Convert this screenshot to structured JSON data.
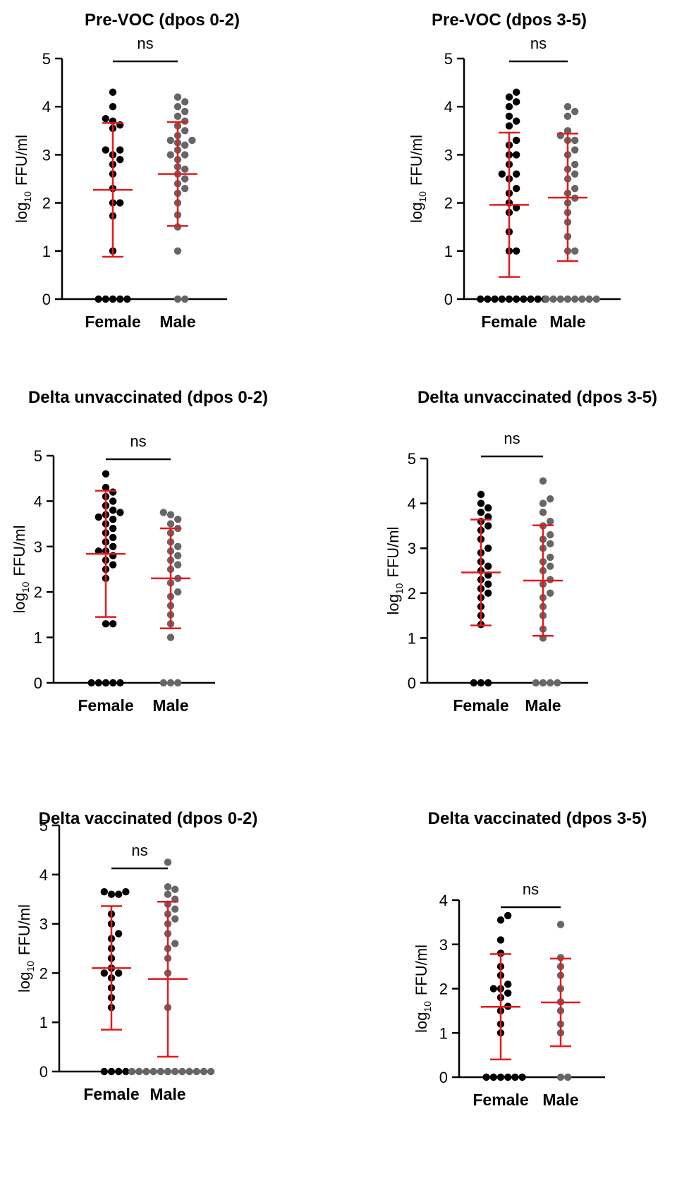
{
  "colors": {
    "female_points": "#000000",
    "male_points": "#666666",
    "error_bars": "#e41a1c",
    "axes": "#000000"
  },
  "chart_data": [
    {
      "type": "scatter",
      "title": "Pre-VOC (dpos 0-2)",
      "ylabel": "log10 FFU/ml",
      "ylabel_base": "log",
      "ylabel_sub": "10",
      "ylabel_rest": "FFU/ml",
      "categories": [
        "Female",
        "Male"
      ],
      "ylim": [
        0,
        5
      ],
      "yticks": [
        0,
        1,
        2,
        3,
        4,
        5
      ],
      "significance": "ns",
      "series": [
        {
          "name": "Female",
          "mean": 2.27,
          "sd_low": 0.88,
          "sd_high": 3.66,
          "values": [
            0,
            0,
            0,
            0,
            0,
            1.0,
            1.73,
            2.0,
            2.0,
            2.3,
            2.6,
            2.8,
            2.9,
            3.0,
            3.1,
            3.1,
            3.55,
            3.62,
            3.7,
            3.75,
            4.0,
            4.3
          ]
        },
        {
          "name": "Male",
          "mean": 2.6,
          "sd_low": 1.52,
          "sd_high": 3.68,
          "values": [
            0,
            0,
            1.0,
            1.5,
            1.75,
            2.0,
            2.2,
            2.3,
            2.4,
            2.5,
            2.6,
            2.7,
            2.75,
            2.9,
            3.0,
            3.0,
            3.1,
            3.2,
            3.25,
            3.3,
            3.3,
            3.4,
            3.5,
            3.6,
            3.7,
            3.8,
            3.9,
            4.0,
            4.1,
            4.2
          ]
        }
      ]
    },
    {
      "type": "scatter",
      "title": "Pre-VOC (dpos 3-5)",
      "ylabel": "log10 FFU/ml",
      "ylabel_base": "log",
      "ylabel_sub": "10",
      "ylabel_rest": "FFU/ml",
      "categories": [
        "Female",
        "Male"
      ],
      "ylim": [
        0,
        5
      ],
      "yticks": [
        0,
        1,
        2,
        3,
        4,
        5
      ],
      "significance": "ns",
      "series": [
        {
          "name": "Female",
          "mean": 1.96,
          "sd_low": 0.46,
          "sd_high": 3.46,
          "values": [
            0,
            0,
            0,
            0,
            0,
            0,
            0,
            0,
            0,
            0,
            1.0,
            1.0,
            1.4,
            1.8,
            1.9,
            2.0,
            2.2,
            2.3,
            2.5,
            2.6,
            2.6,
            2.8,
            3.0,
            3.0,
            3.2,
            3.3,
            3.6,
            3.7,
            3.8,
            4.0,
            4.1,
            4.2,
            4.3
          ]
        },
        {
          "name": "Male",
          "mean": 2.11,
          "sd_low": 0.79,
          "sd_high": 3.44,
          "values": [
            0,
            0,
            0,
            0,
            0,
            0,
            0,
            0,
            1.0,
            1.0,
            1.3,
            1.6,
            1.8,
            2.0,
            2.1,
            2.2,
            2.3,
            2.5,
            2.6,
            2.7,
            2.8,
            3.0,
            3.1,
            3.3,
            3.3,
            3.4,
            3.5,
            3.8,
            3.9,
            4.0
          ]
        }
      ]
    },
    {
      "type": "scatter",
      "title": "Delta unvaccinated (dpos 0-2)",
      "ylabel": "log10 FFU/ml",
      "ylabel_base": "log",
      "ylabel_sub": "10",
      "ylabel_rest": "FFU/ml",
      "categories": [
        "Female",
        "Male"
      ],
      "ylim": [
        0,
        5
      ],
      "yticks": [
        0,
        1,
        2,
        3,
        4,
        5
      ],
      "significance": "ns",
      "series": [
        {
          "name": "Female",
          "mean": 2.84,
          "sd_low": 1.45,
          "sd_high": 4.23,
          "values": [
            0,
            0,
            0,
            0,
            0,
            1.3,
            1.3,
            2.3,
            2.5,
            2.6,
            2.7,
            2.8,
            2.9,
            2.9,
            3.0,
            3.1,
            3.2,
            3.3,
            3.4,
            3.5,
            3.6,
            3.65,
            3.7,
            3.75,
            3.8,
            3.9,
            4.0,
            4.1,
            4.2,
            4.3,
            4.6
          ]
        },
        {
          "name": "Male",
          "mean": 2.3,
          "sd_low": 1.2,
          "sd_high": 3.4,
          "values": [
            0,
            0,
            0,
            1.0,
            1.3,
            1.5,
            1.7,
            1.9,
            2.0,
            2.2,
            2.3,
            2.5,
            2.6,
            2.7,
            2.8,
            2.9,
            3.0,
            3.1,
            3.3,
            3.4,
            3.5,
            3.6,
            3.7,
            3.75
          ]
        }
      ]
    },
    {
      "type": "scatter",
      "title": "Delta unvaccinated (dpos 3-5)",
      "ylabel": "log10 FFU/ml",
      "ylabel_base": "log",
      "ylabel_sub": "10",
      "ylabel_rest": "FFU/ml",
      "categories": [
        "Female",
        "Male"
      ],
      "ylim": [
        0,
        5
      ],
      "yticks": [
        0,
        1,
        2,
        3,
        4,
        5
      ],
      "significance": "ns",
      "series": [
        {
          "name": "Female",
          "mean": 2.46,
          "sd_low": 1.28,
          "sd_high": 3.64,
          "values": [
            0,
            0,
            0,
            1.3,
            1.5,
            1.7,
            1.9,
            2.0,
            2.1,
            2.2,
            2.3,
            2.4,
            2.5,
            2.6,
            2.7,
            2.9,
            3.0,
            3.2,
            3.4,
            3.5,
            3.6,
            3.7,
            3.8,
            3.9,
            4.0,
            4.2
          ]
        },
        {
          "name": "Male",
          "mean": 2.28,
          "sd_low": 1.05,
          "sd_high": 3.51,
          "values": [
            0,
            0,
            0,
            0,
            1.0,
            1.2,
            1.5,
            1.7,
            1.9,
            2.0,
            2.2,
            2.3,
            2.5,
            2.6,
            2.7,
            2.8,
            3.0,
            3.1,
            3.2,
            3.3,
            3.5,
            3.6,
            3.8,
            4.0,
            4.1,
            4.5
          ]
        }
      ]
    },
    {
      "type": "scatter",
      "title": "Delta vaccinated (dpos 0-2)",
      "ylabel": "log10 FFU/ml",
      "ylabel_base": "log",
      "ylabel_sub": "10",
      "ylabel_rest": "FFU/ml",
      "categories": [
        "Female",
        "Male"
      ],
      "ylim": [
        0,
        5
      ],
      "yticks": [
        0,
        1,
        2,
        3,
        4,
        5
      ],
      "significance": "ns",
      "series": [
        {
          "name": "Female",
          "mean": 2.1,
          "sd_low": 0.85,
          "sd_high": 3.36,
          "values": [
            0,
            0,
            0,
            0,
            1.3,
            1.5,
            1.7,
            1.9,
            2.0,
            2.0,
            2.1,
            2.3,
            2.5,
            2.7,
            2.8,
            3.0,
            3.2,
            3.6,
            3.6,
            3.65,
            3.65
          ]
        },
        {
          "name": "Male",
          "mean": 1.88,
          "sd_low": 0.3,
          "sd_high": 3.45,
          "values": [
            0,
            0,
            0,
            0,
            0,
            0,
            0,
            0,
            0,
            0,
            0,
            0,
            1.3,
            2.0,
            2.3,
            2.5,
            2.6,
            2.8,
            3.0,
            3.1,
            3.2,
            3.3,
            3.4,
            3.5,
            3.6,
            3.7,
            3.75,
            4.25
          ]
        }
      ]
    },
    {
      "type": "scatter",
      "title": "Delta vaccinated (dpos 3-5)",
      "ylabel": "log10 FFU/ml",
      "ylabel_base": "log",
      "ylabel_sub": "10",
      "ylabel_rest": "FFU/ml",
      "categories": [
        "Female",
        "Male"
      ],
      "ylim": [
        0,
        4
      ],
      "yticks": [
        0,
        1,
        2,
        3,
        4
      ],
      "significance": "ns",
      "series": [
        {
          "name": "Female",
          "mean": 1.59,
          "sd_low": 0.4,
          "sd_high": 2.78,
          "values": [
            0,
            0,
            0,
            0,
            0,
            0,
            1.0,
            1.2,
            1.5,
            1.6,
            1.8,
            1.9,
            2.0,
            2.0,
            2.1,
            2.3,
            2.5,
            2.8,
            3.1,
            3.55,
            3.65
          ]
        },
        {
          "name": "Male",
          "mean": 1.69,
          "sd_low": 0.7,
          "sd_high": 2.68,
          "values": [
            0,
            0,
            1.0,
            1.2,
            1.5,
            1.7,
            2.0,
            2.3,
            2.5,
            2.7,
            3.45
          ]
        }
      ]
    }
  ]
}
